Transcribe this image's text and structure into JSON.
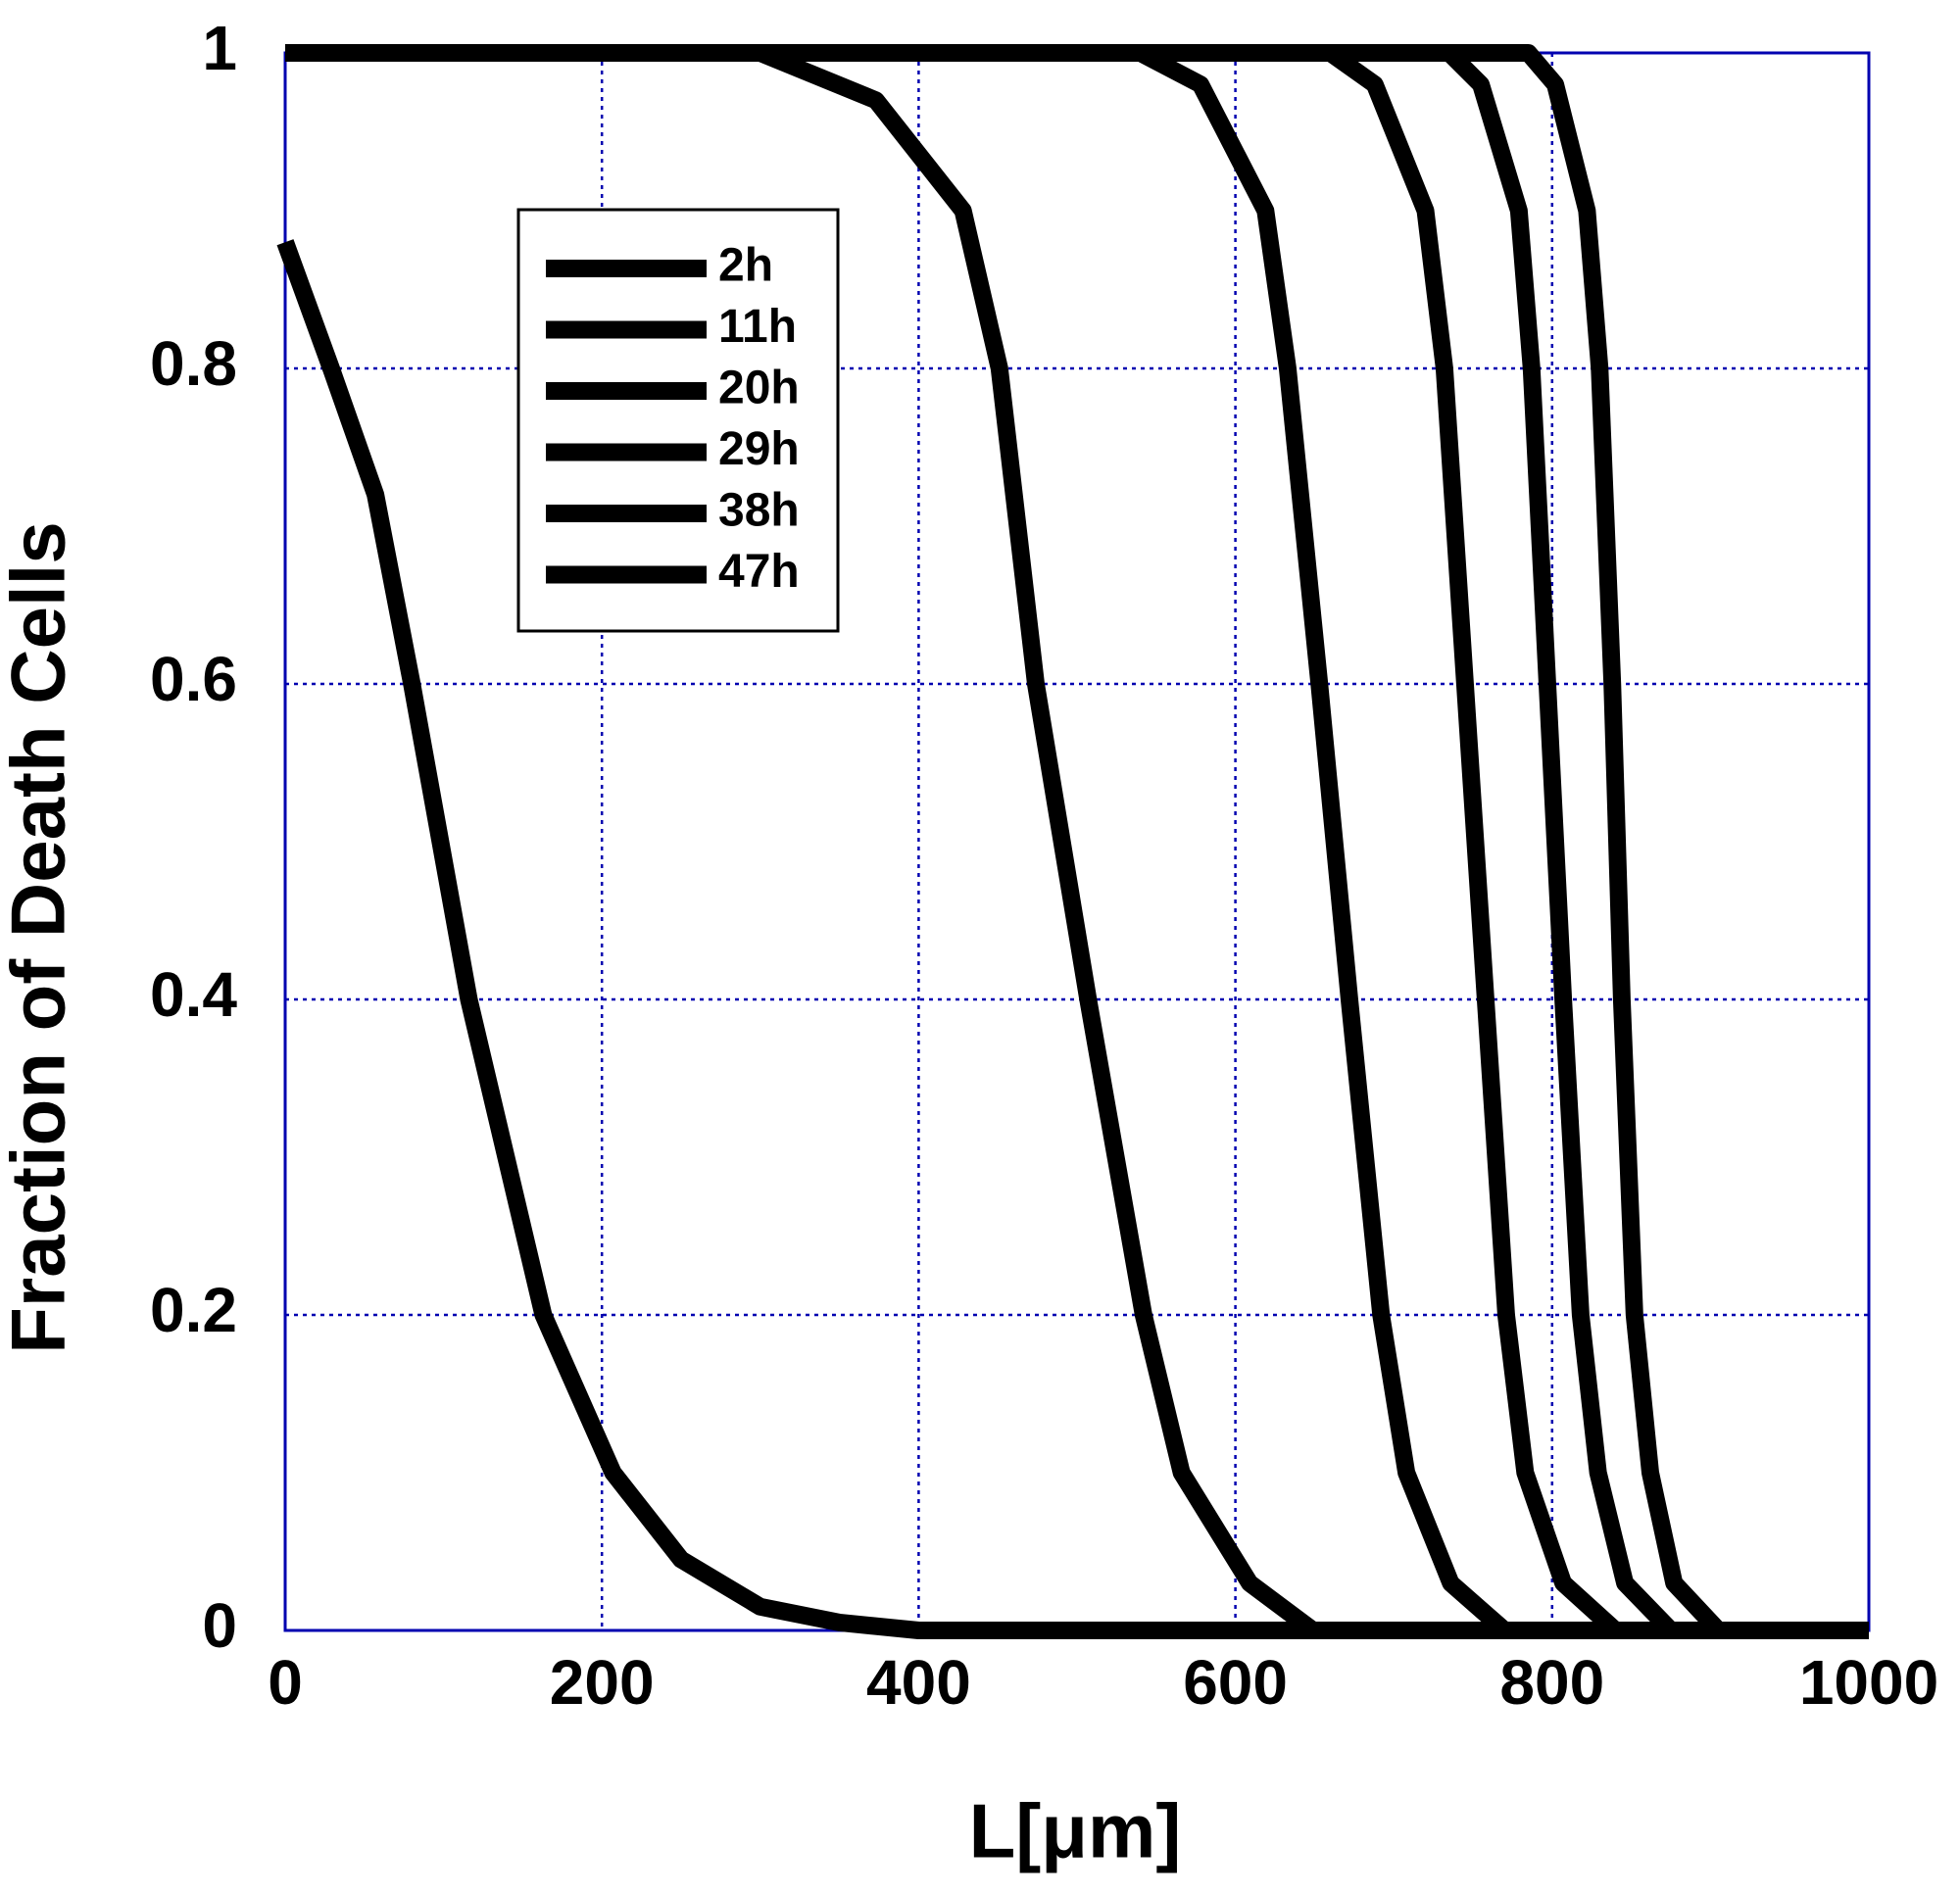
{
  "chart_data": {
    "type": "line",
    "xlabel": "L[μm]",
    "ylabel": "Fraction of Death Cells",
    "xlim": [
      0,
      1000
    ],
    "ylim": [
      0,
      1
    ],
    "xticks": [
      0,
      200,
      400,
      600,
      800,
      1000
    ],
    "yticks": [
      0,
      0.2,
      0.4,
      0.6,
      0.8,
      1
    ],
    "grid": true,
    "legend": "upper left",
    "series": [
      {
        "name": "2h",
        "color": "#000000",
        "x": [
          0,
          29,
          57,
          80,
          116,
          163,
          207,
          250,
          300,
          350,
          400,
          1000
        ],
        "values": [
          0.88,
          0.8,
          0.72,
          0.6,
          0.4,
          0.2,
          0.1,
          0.045,
          0.015,
          0.005,
          0,
          0
        ]
      },
      {
        "name": "11h",
        "color": "#000000",
        "x": [
          0,
          300,
          373,
          428,
          451,
          474,
          507,
          542,
          566,
          609,
          649,
          1000
        ],
        "values": [
          1,
          1,
          0.97,
          0.9,
          0.8,
          0.6,
          0.4,
          0.2,
          0.1,
          0.03,
          0,
          0
        ]
      },
      {
        "name": "20h",
        "color": "#000000",
        "x": [
          0,
          540,
          578,
          619,
          633,
          653,
          672,
          692,
          708,
          736,
          770,
          1000
        ],
        "values": [
          1,
          1,
          0.98,
          0.9,
          0.8,
          0.6,
          0.4,
          0.2,
          0.1,
          0.03,
          0,
          0
        ]
      },
      {
        "name": "29h",
        "color": "#000000",
        "x": [
          0,
          660,
          688,
          720,
          732,
          745,
          758,
          771,
          783,
          807,
          840,
          1000
        ],
        "values": [
          1,
          1,
          0.98,
          0.9,
          0.8,
          0.6,
          0.4,
          0.2,
          0.1,
          0.03,
          0,
          0
        ]
      },
      {
        "name": "38h",
        "color": "#000000",
        "x": [
          0,
          735,
          755,
          779,
          787,
          797,
          807,
          818,
          829,
          846,
          875,
          1000
        ],
        "values": [
          1,
          1,
          0.98,
          0.9,
          0.8,
          0.6,
          0.4,
          0.2,
          0.1,
          0.03,
          0,
          0
        ]
      },
      {
        "name": "47h",
        "color": "#000000",
        "x": [
          0,
          785,
          802,
          822,
          830,
          838,
          844,
          852,
          862,
          877,
          905,
          1000
        ],
        "values": [
          1,
          1,
          0.98,
          0.9,
          0.8,
          0.6,
          0.4,
          0.2,
          0.1,
          0.03,
          0,
          0
        ]
      }
    ]
  }
}
